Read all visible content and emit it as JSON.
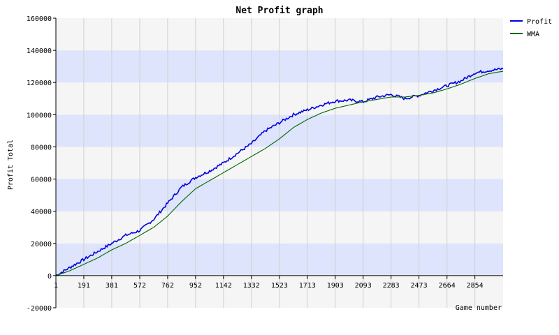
{
  "chart_data": {
    "type": "line",
    "title": "Net Profit graph",
    "xlabel": "Game number",
    "ylabel": "Profit Total",
    "xlim": [
      1,
      3046
    ],
    "ylim": [
      -20000,
      160000
    ],
    "x_ticks": [
      "1",
      "191",
      "381",
      "572",
      "762",
      "952",
      "1142",
      "1332",
      "1523",
      "1713",
      "1903",
      "2093",
      "2283",
      "2473",
      "2664",
      "2854"
    ],
    "y_ticks": [
      "160000",
      "140000",
      "120000",
      "100000",
      "80000",
      "60000",
      "40000",
      "20000",
      "0",
      "-20000"
    ],
    "grid": true,
    "legend_position": "top-right",
    "colors": {
      "profit": "#0000e0",
      "wma": "#006600",
      "band_blue": "#dde4fb",
      "band_gray": "#f5f5f5",
      "grid": "#d0d0d0"
    },
    "series": [
      {
        "name": "Profit",
        "x": [
          1,
          95,
          191,
          286,
          381,
          476,
          572,
          667,
          762,
          857,
          952,
          1047,
          1142,
          1237,
          1332,
          1427,
          1523,
          1618,
          1713,
          1808,
          1903,
          1998,
          2093,
          2188,
          2283,
          2378,
          2473,
          2568,
          2664,
          2759,
          2854,
          2949,
          3046
        ],
        "values": [
          0,
          5000,
          10000,
          15000,
          20000,
          25000,
          28000,
          35000,
          45000,
          55000,
          61000,
          65000,
          70000,
          76000,
          82000,
          90000,
          95000,
          100000,
          103000,
          106000,
          108500,
          109000,
          108000,
          111000,
          112500,
          110000,
          112000,
          115000,
          118000,
          121000,
          126000,
          127500,
          128500
        ]
      },
      {
        "name": "WMA",
        "x": [
          1,
          95,
          191,
          286,
          381,
          476,
          572,
          667,
          762,
          857,
          952,
          1047,
          1142,
          1237,
          1332,
          1427,
          1523,
          1618,
          1713,
          1808,
          1903,
          1998,
          2093,
          2188,
          2283,
          2378,
          2473,
          2568,
          2664,
          2759,
          2854,
          2949,
          3046
        ],
        "values": [
          0,
          3000,
          7000,
          11000,
          16000,
          20000,
          25000,
          30000,
          37000,
          46000,
          54000,
          59000,
          64000,
          69000,
          74000,
          79000,
          85000,
          92000,
          97000,
          101000,
          104000,
          106000,
          108000,
          109500,
          111000,
          111000,
          112000,
          113500,
          116000,
          119000,
          122500,
          125500,
          127000
        ]
      }
    ]
  }
}
